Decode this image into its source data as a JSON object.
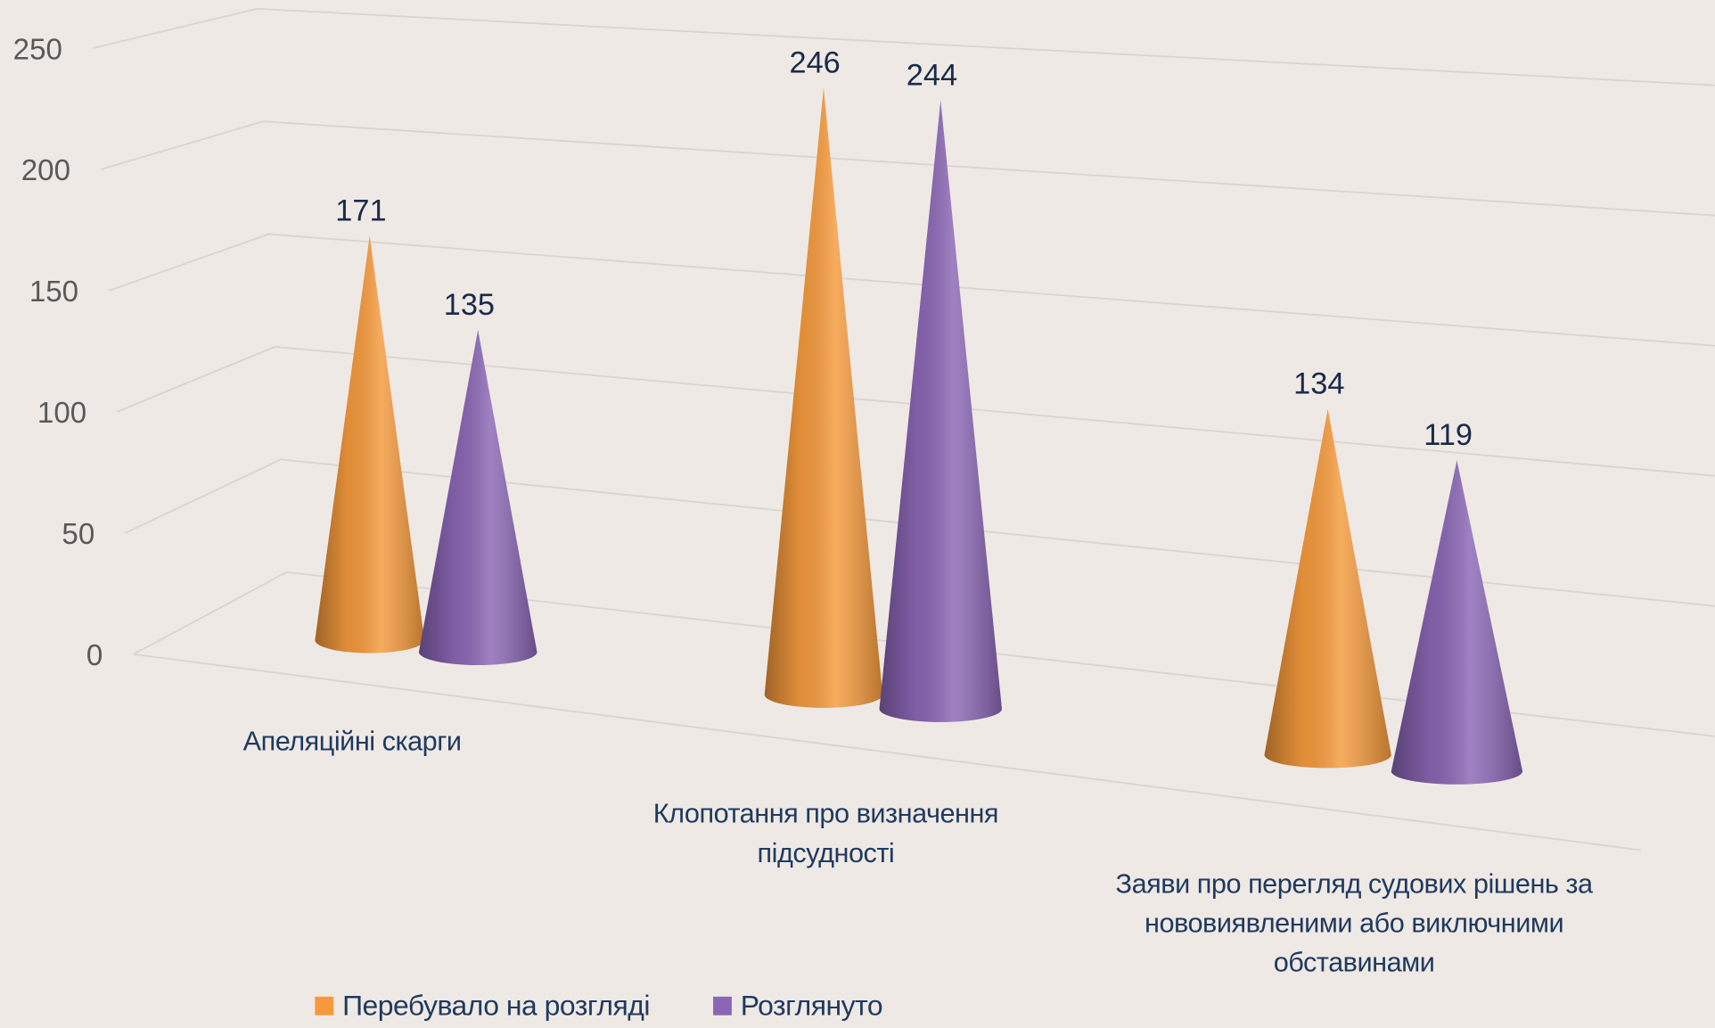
{
  "chart_data": {
    "type": "cone3d",
    "categories": [
      "Апеляційні скарги",
      "Клопотання про визначення підсудності",
      "Заяви про перегляд судових рішень за нововиявленими або виключними обставинами"
    ],
    "series": [
      {
        "name": "Перебувало на розгляді",
        "color": "#f59a3c",
        "values": [
          171,
          246,
          134
        ]
      },
      {
        "name": "Розглянуто",
        "color": "#8a66b4",
        "values": [
          135,
          244,
          119
        ]
      }
    ],
    "ylim": [
      0,
      250
    ],
    "yticks": [
      0,
      50,
      100,
      150,
      200,
      250
    ],
    "grid": true,
    "legend": "bottom"
  }
}
